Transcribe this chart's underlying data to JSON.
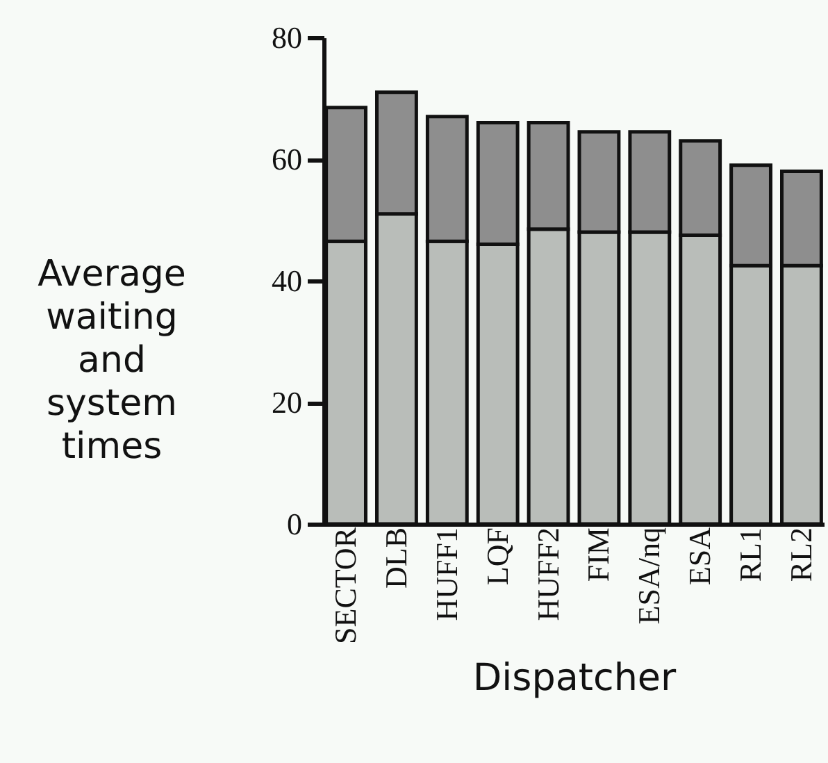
{
  "chart_data": {
    "type": "bar",
    "stacked": true,
    "xlabel": "Dispatcher",
    "ylabel": "Average waiting and system times",
    "categories": [
      "SECTOR",
      "DLB",
      "HUFF1",
      "LQF",
      "HUFF2",
      "FIM",
      "ESA/nq",
      "ESA",
      "RL1",
      "RL2"
    ],
    "series": [
      {
        "color": "#b9bdb9",
        "values": [
          46.5,
          51,
          46.5,
          46,
          48.5,
          48,
          48,
          47.5,
          42.5,
          42.5
        ]
      },
      {
        "color": "#8e8e8e",
        "values": [
          22,
          20,
          20.5,
          20,
          17.5,
          16.5,
          16.5,
          15.5,
          16.5,
          15.5
        ]
      }
    ],
    "ylim": [
      0,
      80
    ],
    "yticks": [
      0,
      20,
      40,
      60,
      80
    ],
    "grid": false,
    "legend": false
  }
}
